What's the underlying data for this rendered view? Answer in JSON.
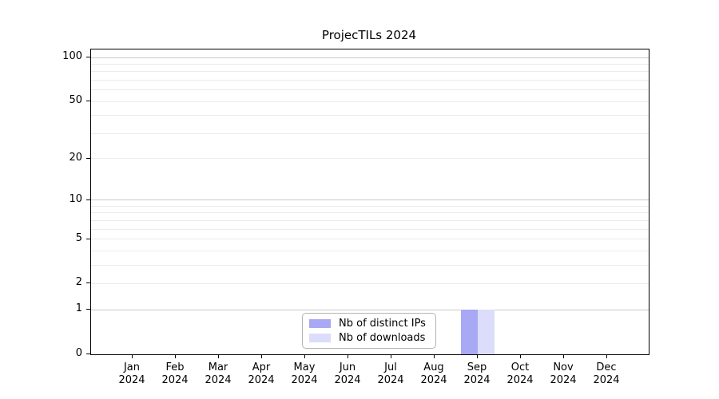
{
  "chart_data": {
    "type": "bar",
    "title": "ProjecTILs 2024",
    "categories": [
      "Jan 2024",
      "Feb 2024",
      "Mar 2024",
      "Apr 2024",
      "May 2024",
      "Jun 2024",
      "Jul 2024",
      "Aug 2024",
      "Sep 2024",
      "Oct 2024",
      "Nov 2024",
      "Dec 2024"
    ],
    "series": [
      {
        "name": "Nb of distinct IPs",
        "color": "#a8a8f4",
        "values": [
          0,
          0,
          0,
          0,
          0,
          0,
          0,
          0,
          1,
          0,
          0,
          0
        ]
      },
      {
        "name": "Nb of downloads",
        "color": "#dbddfa",
        "values": [
          0,
          0,
          0,
          0,
          0,
          0,
          0,
          0,
          1,
          0,
          0,
          0
        ]
      }
    ],
    "y_scale": "log1p",
    "y_ticks": [
      0,
      1,
      2,
      5,
      10,
      20,
      50,
      100
    ],
    "y_major_gridlines": [
      1,
      10,
      100
    ],
    "y_minor_gridlines": [
      2,
      3,
      4,
      5,
      6,
      7,
      8,
      9,
      20,
      30,
      40,
      50,
      60,
      70,
      80,
      90
    ],
    "ylim": [
      0,
      113
    ],
    "xlabel": "",
    "ylabel": "",
    "grid": "horizontal",
    "legend_position": "bottom-center"
  },
  "colors": {
    "background": "#ffffff",
    "axis": "#000000",
    "major_grid": "#c9c9c9",
    "minor_grid": "#ececec",
    "legend_border": "#b3b3b3",
    "text": "#000000"
  }
}
